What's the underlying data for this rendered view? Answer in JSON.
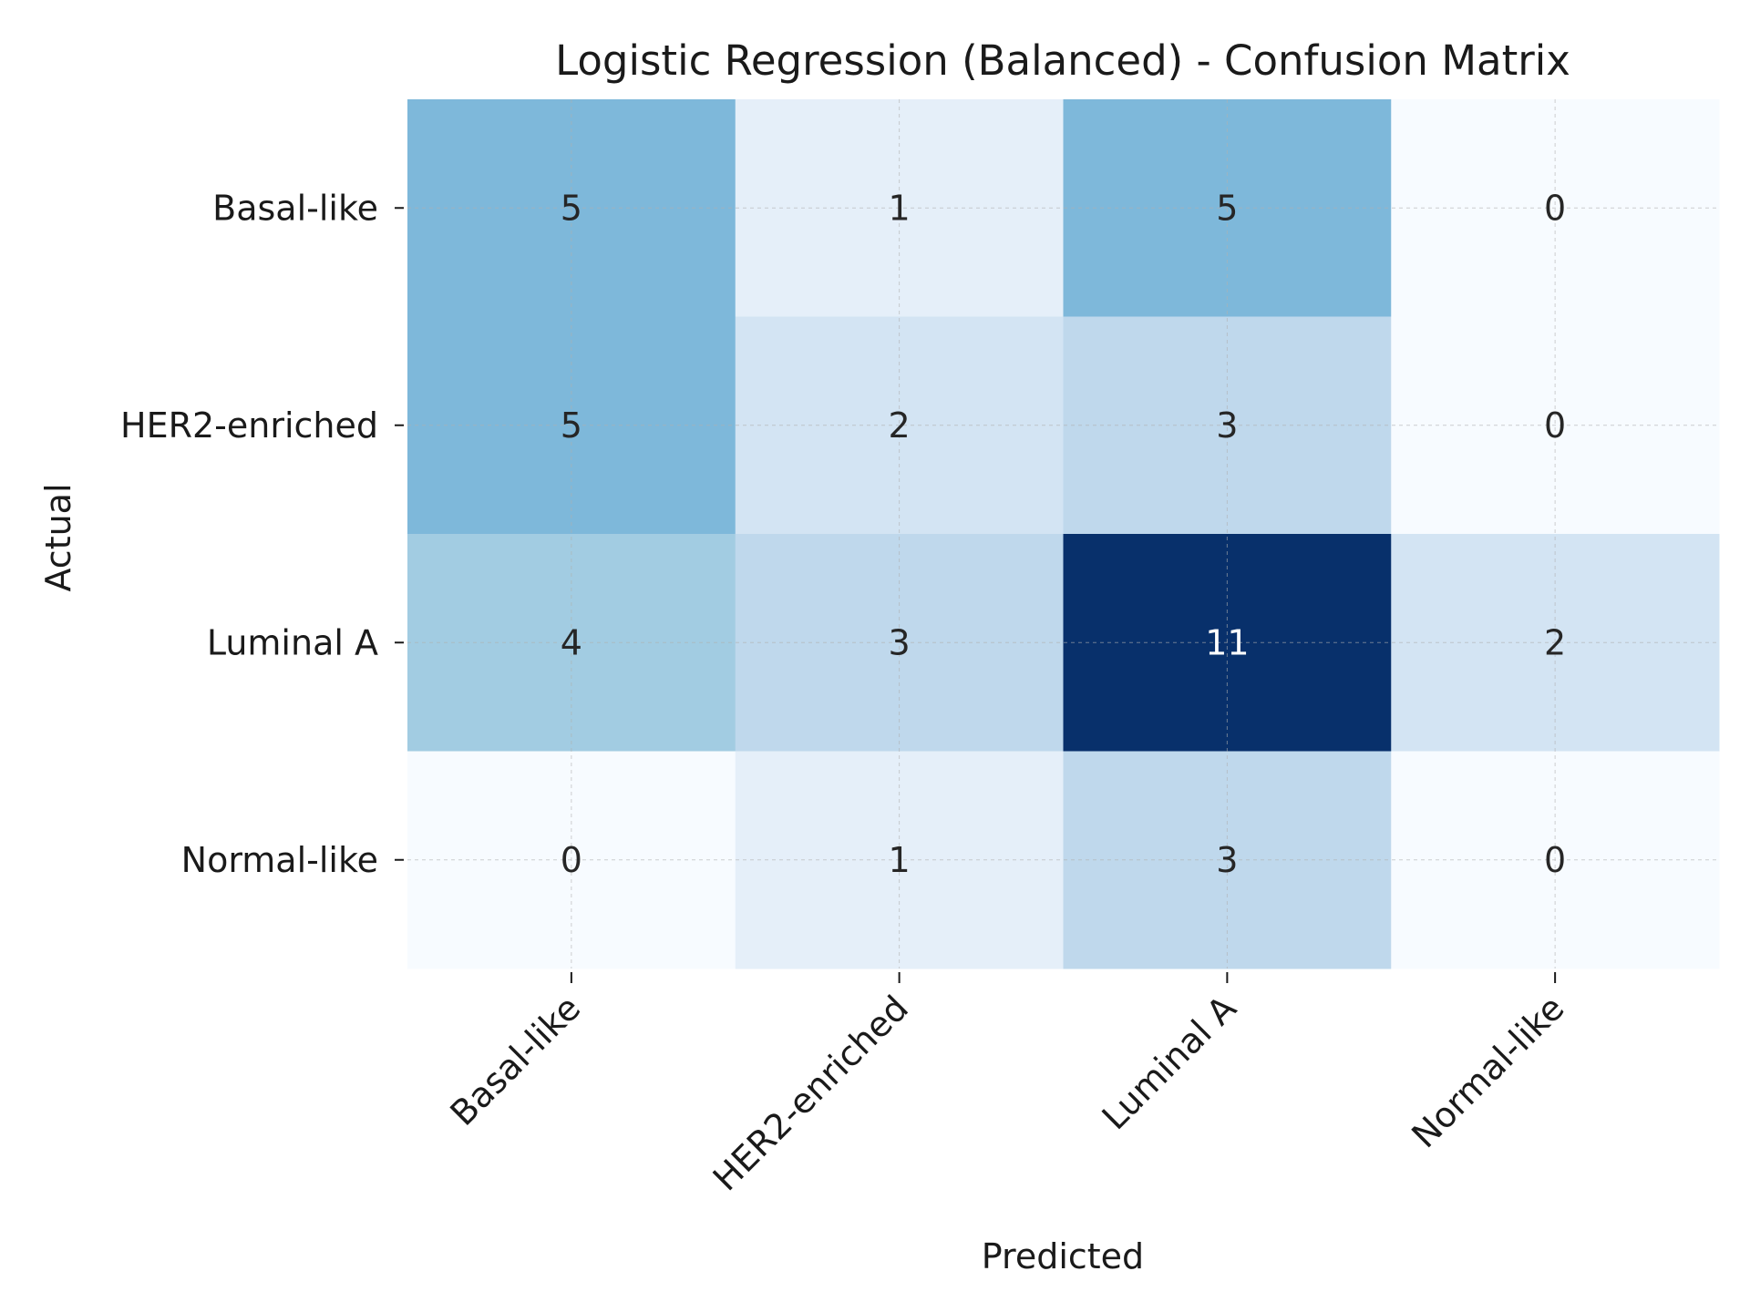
{
  "chart_data": {
    "type": "heatmap",
    "title": "Logistic Regression (Balanced) - Confusion Matrix",
    "xlabel": "Predicted",
    "ylabel": "Actual",
    "x_categories": [
      "Basal-like",
      "HER2-enriched",
      "Luminal A",
      "Normal-like"
    ],
    "y_categories": [
      "Basal-like",
      "HER2-enriched",
      "Luminal A",
      "Normal-like"
    ],
    "values": [
      [
        5,
        1,
        5,
        0
      ],
      [
        5,
        2,
        3,
        0
      ],
      [
        4,
        3,
        11,
        2
      ],
      [
        0,
        1,
        3,
        0
      ]
    ],
    "value_range": [
      0,
      11
    ],
    "colormap": "Blues",
    "color_low": "#f7fbff",
    "color_high": "#08306b",
    "text_color_dark": "#262626",
    "text_color_light": "#ffffff",
    "grid": true,
    "colorbar": false
  }
}
